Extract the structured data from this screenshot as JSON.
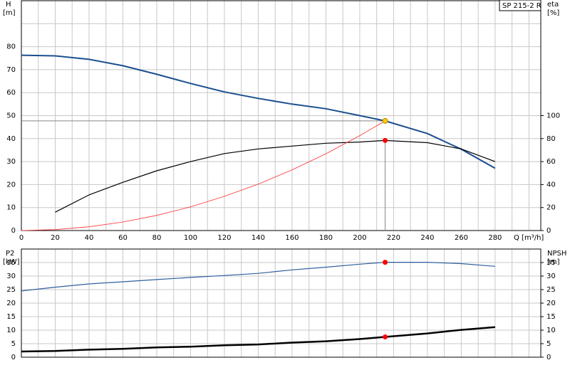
{
  "chart_data": [
    {
      "type": "line",
      "label_box": "SP 215-2 R",
      "ylabel": [
        "H",
        "[m]"
      ],
      "y2label": [
        "eta",
        "[%]"
      ],
      "xlabel": "Q [m³/h]",
      "xlim": [
        0,
        307
      ],
      "xticks": [
        0,
        20,
        40,
        60,
        80,
        100,
        120,
        140,
        160,
        180,
        200,
        220,
        240,
        260,
        280
      ],
      "xgrid": [
        10,
        30,
        50,
        70,
        90,
        110,
        130,
        150,
        170,
        190,
        210,
        230,
        250,
        270,
        290,
        300
      ],
      "ylim": [
        0,
        100
      ],
      "yticks": [
        0,
        10,
        20,
        30,
        40,
        50,
        60,
        70,
        80
      ],
      "ygrid": [
        90
      ],
      "y2lim": [
        0,
        200
      ],
      "y2ticks": [
        0,
        20,
        40,
        60,
        80,
        100
      ],
      "series": [
        {
          "color": "#1b4f8f",
          "width": 2,
          "x": [
            0,
            20,
            40,
            60,
            80,
            100,
            120,
            140,
            160,
            180,
            200,
            215,
            240,
            260,
            280
          ],
          "values": [
            76.3,
            76,
            74.5,
            71.7,
            68,
            64,
            60.3,
            57.5,
            55,
            53,
            50,
            47.7,
            42.2,
            35.4,
            27.1
          ]
        },
        {
          "color": "#000000",
          "width": 1.2,
          "axis": "y2",
          "x": [
            20,
            40,
            60,
            80,
            100,
            120,
            140,
            160,
            180,
            200,
            215,
            240,
            260,
            280
          ],
          "values": [
            16,
            31,
            42,
            52,
            60,
            67,
            71,
            73.5,
            76,
            77,
            78.4,
            76.5,
            71,
            60
          ]
        },
        {
          "color": "#ff3030",
          "width": 0.8,
          "x": [
            0,
            20,
            40,
            60,
            80,
            100,
            120,
            140,
            160,
            180,
            200,
            215
          ],
          "values": [
            0,
            0.41,
            1.65,
            3.71,
            6.6,
            10.3,
            14.9,
            20.2,
            26.4,
            33.4,
            41.3,
            47.7
          ]
        }
      ],
      "markers": [
        {
          "x": 215,
          "y": 47.7,
          "color": "#ffcc00",
          "guide": "h"
        },
        {
          "x": 215,
          "y": 78.4,
          "axis": "y2",
          "color": "#ff0000",
          "guide": "v"
        }
      ]
    },
    {
      "type": "line",
      "ylabel": [
        "P2",
        "[kW]"
      ],
      "y2label": [
        "NPSH",
        "[m]"
      ],
      "xlim": [
        0,
        307
      ],
      "xgrid": [
        0,
        10,
        20,
        30,
        40,
        50,
        60,
        70,
        80,
        90,
        100,
        110,
        120,
        130,
        140,
        150,
        160,
        170,
        180,
        190,
        200,
        210,
        220,
        230,
        240,
        250,
        260,
        270,
        280,
        290,
        300
      ],
      "ylim": [
        0,
        40
      ],
      "yticks": [
        0,
        5,
        10,
        15,
        20,
        25,
        30,
        35
      ],
      "y2lim": [
        0,
        40
      ],
      "y2ticks": [
        0,
        5,
        10,
        15,
        20,
        25,
        30,
        35
      ],
      "series": [
        {
          "color": "#2f5f9f",
          "width": 1.2,
          "x": [
            0,
            20,
            40,
            60,
            80,
            100,
            120,
            140,
            160,
            180,
            200,
            215,
            240,
            260,
            280
          ],
          "values": [
            24.5,
            25.9,
            27.1,
            27.9,
            28.7,
            29.5,
            30.2,
            31,
            32.3,
            33.3,
            34.4,
            35.1,
            35.1,
            34.6,
            33.6
          ]
        },
        {
          "color": "#000000",
          "width": 2.5,
          "axis": "y2",
          "x": [
            0,
            20,
            40,
            60,
            80,
            100,
            120,
            140,
            160,
            180,
            200,
            215,
            240,
            260,
            280
          ],
          "values": [
            2.1,
            2.3,
            2.8,
            3.1,
            3.6,
            3.9,
            4.4,
            4.7,
            5.4,
            5.9,
            6.7,
            7.5,
            8.8,
            10.1,
            11.1
          ]
        }
      ],
      "markers": [
        {
          "x": 215,
          "y": 35.1,
          "color": "#ff0000"
        },
        {
          "x": 215,
          "y": 7.5,
          "axis": "y2",
          "color": "#ff0000"
        }
      ]
    }
  ]
}
